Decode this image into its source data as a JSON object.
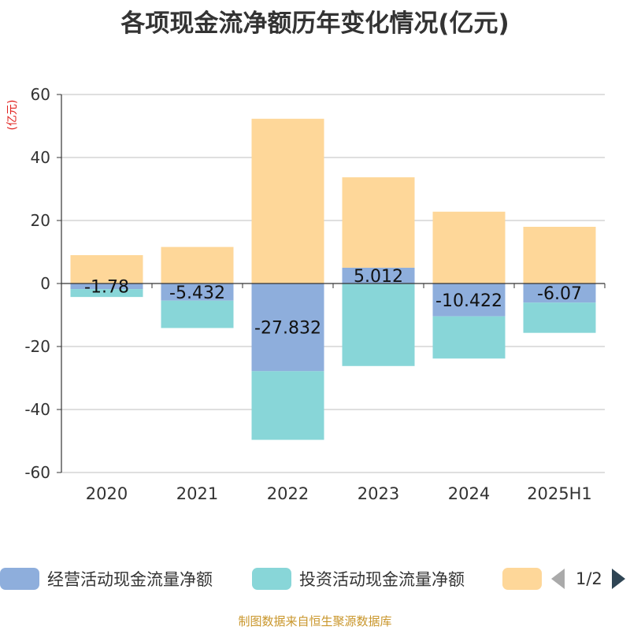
{
  "title": "各项现金流净额历年变化情况(亿元)",
  "unit_label": "(亿元)",
  "source": "制图数据来自恒生聚源数据库",
  "legend": {
    "items": [
      {
        "label": "经营活动现金流量净额",
        "color": "#8eaedc"
      },
      {
        "label": "投资活动现金流量净额",
        "color": "#88d6d8"
      },
      {
        "label": "",
        "color": "#fed799"
      }
    ],
    "page": "1/2"
  },
  "chart_data": {
    "type": "bar",
    "stacked": true,
    "categories": [
      "2020",
      "2021",
      "2022",
      "2023",
      "2024",
      "2025H1"
    ],
    "ylim": [
      -60,
      60
    ],
    "yticks": [
      60,
      40,
      20,
      0,
      -20,
      -40,
      -60
    ],
    "grid": true,
    "legend_position": "bottom",
    "series": [
      {
        "name": "经营活动现金流量净额",
        "color": "#8eaedc",
        "values": [
          -1.78,
          -5.432,
          -27.832,
          5.012,
          -10.422,
          -6.07
        ],
        "labels": [
          "-1.78",
          "-5.432",
          "-27.832",
          "5.012",
          "-10.422",
          "-6.07"
        ]
      },
      {
        "name": "投资活动现金流量净额",
        "color": "#88d6d8",
        "values": [
          -2.5,
          -8.7,
          -21.8,
          -26.2,
          -13.4,
          -9.6
        ]
      },
      {
        "name": "",
        "color": "#fed799",
        "values": [
          9.0,
          11.6,
          52.3,
          28.7,
          22.8,
          18.0
        ]
      }
    ]
  }
}
